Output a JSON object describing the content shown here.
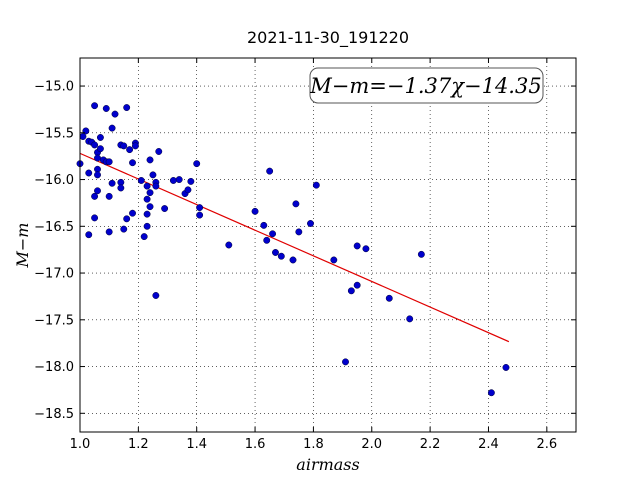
{
  "chart_data": {
    "type": "scatter",
    "title": "2021-11-30_191220",
    "xlabel": "airmass",
    "ylabel": "M−m",
    "xlim": [
      1.0,
      2.7
    ],
    "ylim": [
      -18.7,
      -14.7
    ],
    "x_ticks": [
      "1.0",
      "1.2",
      "1.4",
      "1.6",
      "1.8",
      "2.0",
      "2.2",
      "2.4",
      "2.6"
    ],
    "y_ticks": [
      "−15.0",
      "−15.5",
      "−16.0",
      "−16.5",
      "−17.0",
      "−17.5",
      "−18.0",
      "−18.5"
    ],
    "grid": true,
    "annotation": "M−m=−1.37χ−14.35",
    "fit_line": {
      "slope": -1.37,
      "intercept": -14.35,
      "x_range": [
        1.0,
        2.47
      ],
      "color": "#e00000"
    },
    "point_color": "#0000cc",
    "points": [
      [
        1.0,
        -15.83
      ],
      [
        1.01,
        -15.54
      ],
      [
        1.02,
        -15.48
      ],
      [
        1.03,
        -15.59
      ],
      [
        1.03,
        -15.93
      ],
      [
        1.03,
        -16.59
      ],
      [
        1.04,
        -15.6
      ],
      [
        1.05,
        -15.21
      ],
      [
        1.05,
        -15.63
      ],
      [
        1.05,
        -16.18
      ],
      [
        1.05,
        -16.41
      ],
      [
        1.06,
        -15.71
      ],
      [
        1.06,
        -15.77
      ],
      [
        1.06,
        -15.89
      ],
      [
        1.06,
        -15.95
      ],
      [
        1.06,
        -16.12
      ],
      [
        1.07,
        -15.55
      ],
      [
        1.07,
        -15.67
      ],
      [
        1.08,
        -15.79
      ],
      [
        1.09,
        -15.24
      ],
      [
        1.09,
        -15.81
      ],
      [
        1.1,
        -15.81
      ],
      [
        1.1,
        -16.18
      ],
      [
        1.1,
        -16.56
      ],
      [
        1.11,
        -15.45
      ],
      [
        1.11,
        -16.04
      ],
      [
        1.12,
        -15.3
      ],
      [
        1.14,
        -15.63
      ],
      [
        1.14,
        -16.03
      ],
      [
        1.14,
        -16.09
      ],
      [
        1.15,
        -15.64
      ],
      [
        1.15,
        -16.53
      ],
      [
        1.16,
        -15.23
      ],
      [
        1.16,
        -16.42
      ],
      [
        1.17,
        -15.68
      ],
      [
        1.18,
        -15.82
      ],
      [
        1.18,
        -16.36
      ],
      [
        1.19,
        -15.61
      ],
      [
        1.19,
        -15.64
      ],
      [
        1.21,
        -16.01
      ],
      [
        1.22,
        -16.61
      ],
      [
        1.23,
        -16.07
      ],
      [
        1.23,
        -16.21
      ],
      [
        1.23,
        -16.37
      ],
      [
        1.23,
        -16.5
      ],
      [
        1.24,
        -15.79
      ],
      [
        1.24,
        -16.14
      ],
      [
        1.24,
        -16.29
      ],
      [
        1.25,
        -15.95
      ],
      [
        1.26,
        -16.03
      ],
      [
        1.26,
        -16.07
      ],
      [
        1.26,
        -17.24
      ],
      [
        1.27,
        -15.7
      ],
      [
        1.29,
        -16.31
      ],
      [
        1.32,
        -16.01
      ],
      [
        1.34,
        -16.0
      ],
      [
        1.36,
        -16.15
      ],
      [
        1.37,
        -16.11
      ],
      [
        1.38,
        -16.02
      ],
      [
        1.4,
        -15.83
      ],
      [
        1.41,
        -16.3
      ],
      [
        1.41,
        -16.38
      ],
      [
        1.51,
        -16.7
      ],
      [
        1.6,
        -16.34
      ],
      [
        1.63,
        -16.49
      ],
      [
        1.64,
        -16.65
      ],
      [
        1.65,
        -15.91
      ],
      [
        1.66,
        -16.58
      ],
      [
        1.67,
        -16.78
      ],
      [
        1.69,
        -16.82
      ],
      [
        1.73,
        -16.86
      ],
      [
        1.74,
        -16.26
      ],
      [
        1.75,
        -16.56
      ],
      [
        1.79,
        -16.47
      ],
      [
        1.81,
        -16.06
      ],
      [
        1.87,
        -16.86
      ],
      [
        1.91,
        -17.95
      ],
      [
        1.93,
        -17.19
      ],
      [
        1.95,
        -16.71
      ],
      [
        1.95,
        -17.13
      ],
      [
        1.98,
        -16.74
      ],
      [
        2.06,
        -17.27
      ],
      [
        2.13,
        -17.49
      ],
      [
        2.17,
        -16.8
      ],
      [
        2.41,
        -18.28
      ],
      [
        2.46,
        -18.01
      ]
    ]
  }
}
